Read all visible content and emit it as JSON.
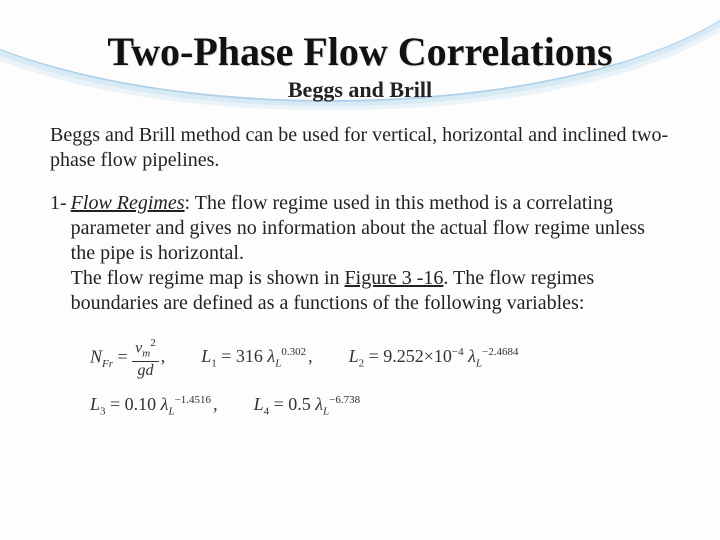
{
  "colors": {
    "background": "#fdfdfd",
    "text": "#222222",
    "title_shadow": "#dddddd",
    "swoosh_primary": "#a9cde8",
    "swoosh_secondary": "#d5e8f4",
    "swoosh_tertiary": "#eaf3f9"
  },
  "typography": {
    "font_family": "Times New Roman",
    "title_fontsize_pt": 30,
    "subtitle_fontsize_pt": 17,
    "body_fontsize_pt": 15,
    "equation_fontsize_pt": 14
  },
  "title": "Two-Phase Flow Correlations",
  "subtitle": "Beggs and Brill",
  "intro": "Beggs and Brill method can be used for vertical, horizontal and inclined two-phase flow pipelines.",
  "item1": {
    "number": "1-",
    "heading": "Flow Regimes",
    "sep": ": ",
    "text_a": "The flow regime used in this method is a correlating parameter and gives no information about the actual flow regime unless the pipe is horizontal.",
    "text_b": "The flow regime map is shown in ",
    "fig_link": "Figure 3 -16",
    "text_c": ". The flow regimes boundaries are defined as a functions of the following variables:"
  },
  "equations": {
    "row1": {
      "nfr_label": "N",
      "nfr_sub": "Fr",
      "nfr_eq": " = ",
      "nfr_top_v": "v",
      "nfr_top_sub": "m",
      "nfr_top_sup": "2",
      "nfr_bot": "gd",
      "comma1": ",",
      "L1_label": "L",
      "L1_sub": "1",
      "L1_rhs": " = 316 ",
      "L1_lambda": "λ",
      "L1_lambda_sub": "L",
      "L1_exp": "0.302",
      "comma2": ",",
      "L2_label": "L",
      "L2_sub": "2",
      "L2_rhs": " = 9.252×10",
      "L2_ten_exp": "−4",
      "L2_space": " ",
      "L2_lambda": "λ",
      "L2_lambda_sub": "L",
      "L2_exp": "−2.4684"
    },
    "row2": {
      "L3_label": "L",
      "L3_sub": "3",
      "L3_rhs": " = 0.10 ",
      "L3_lambda": "λ",
      "L3_lambda_sub": "L",
      "L3_exp": "−1.4516",
      "comma3": ",",
      "L4_label": "L",
      "L4_sub": "4",
      "L4_rhs": " = 0.5 ",
      "L4_lambda": "λ",
      "L4_lambda_sub": "L",
      "L4_exp": "−6.738"
    }
  }
}
